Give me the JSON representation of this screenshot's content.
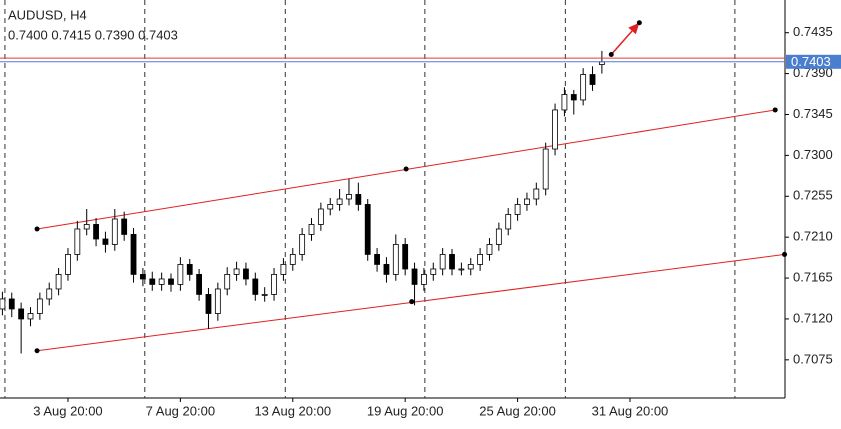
{
  "chart_data": {
    "type": "candlestick",
    "title": "AUDUSD, H4",
    "subtitle": "0.7400 0.7415 0.7390 0.7403",
    "categories": [
      null,
      null,
      null,
      null,
      null,
      null,
      null,
      "3 Aug 20:00",
      null,
      null,
      null,
      null,
      null,
      null,
      null,
      null,
      null,
      null,
      null,
      "7 Aug 20:00",
      null,
      null,
      null,
      null,
      null,
      null,
      null,
      null,
      null,
      null,
      null,
      "13 Aug 20:00",
      null,
      null,
      null,
      null,
      null,
      null,
      null,
      null,
      null,
      null,
      null,
      "19 Aug 20:00",
      null,
      null,
      null,
      null,
      null,
      null,
      null,
      null,
      null,
      null,
      null,
      "25 Aug 20:00",
      null,
      null,
      null,
      null,
      null,
      null,
      null,
      null,
      null,
      null,
      null,
      "31 Aug 20:00",
      null,
      null,
      null,
      null,
      null,
      null,
      null,
      null,
      null,
      null,
      null,
      null,
      null,
      null,
      null,
      null
    ],
    "open": [
      0.7131,
      0.7142,
      0.7131,
      0.712,
      0.7126,
      0.7142,
      0.7153,
      0.7169,
      0.7191,
      0.7219,
      0.7224,
      0.7208,
      0.7202,
      0.723,
      0.7213,
      0.7169,
      0.7164,
      0.7158,
      0.7164,
      0.7158,
      0.718,
      0.7169,
      0.7147,
      0.7126,
      0.7153,
      0.7169,
      0.7175,
      0.7164,
      0.7147,
      0.7147,
      0.7169,
      0.718,
      0.7191,
      0.7213,
      0.7224,
      0.7241,
      0.7246,
      0.7252,
      0.7257,
      0.7246,
      0.7191,
      0.718,
      0.7169,
      0.7202,
      0.7175,
      0.7158,
      0.7169,
      0.7175,
      0.7191,
      0.7175,
      0.7175,
      0.718,
      0.7191,
      0.7202,
      0.7219,
      0.7235,
      0.7246,
      0.7252,
      0.7263,
      0.7307,
      0.735,
      0.7367,
      0.7361,
      0.7389,
      0.74,
      null,
      null,
      null,
      null,
      null,
      null,
      null,
      null,
      null,
      null,
      null,
      null,
      null,
      null,
      null,
      null,
      null,
      null,
      null
    ],
    "high": [
      0.715,
      0.7149,
      0.7138,
      0.7133,
      0.7149,
      0.716,
      0.7176,
      0.7198,
      0.7228,
      0.7241,
      0.7231,
      0.7216,
      0.7241,
      0.7238,
      0.722,
      0.7176,
      0.7172,
      0.7171,
      0.717,
      0.7188,
      0.7186,
      0.7175,
      0.7154,
      0.716,
      0.7177,
      0.7183,
      0.7182,
      0.7171,
      0.7155,
      0.7176,
      0.7187,
      0.7198,
      0.722,
      0.7231,
      0.7248,
      0.7253,
      0.7263,
      0.7274,
      0.727,
      0.7252,
      0.7198,
      0.7188,
      0.7213,
      0.7209,
      0.7182,
      0.7176,
      0.7182,
      0.7198,
      0.7197,
      0.7182,
      0.7187,
      0.7198,
      0.7209,
      0.7226,
      0.7242,
      0.7253,
      0.7259,
      0.727,
      0.7314,
      0.7357,
      0.7375,
      0.7372,
      0.7396,
      0.7398,
      0.7415,
      null,
      null,
      null,
      null,
      null,
      null,
      null,
      null,
      null,
      null,
      null,
      null,
      null,
      null,
      null,
      null,
      null,
      null,
      null
    ],
    "low": [
      0.7124,
      0.7122,
      0.7082,
      0.7112,
      0.7119,
      0.7135,
      0.7146,
      0.7162,
      0.7184,
      0.7212,
      0.72,
      0.7193,
      0.7195,
      0.7206,
      0.716,
      0.7156,
      0.7151,
      0.7151,
      0.715,
      0.7151,
      0.7162,
      0.714,
      0.7109,
      0.7118,
      0.7146,
      0.7162,
      0.7157,
      0.714,
      0.7139,
      0.714,
      0.7162,
      0.7173,
      0.7184,
      0.7206,
      0.7217,
      0.7234,
      0.7239,
      0.7245,
      0.7239,
      0.7184,
      0.7172,
      0.716,
      0.7162,
      0.7168,
      0.7135,
      0.7151,
      0.7162,
      0.7168,
      0.7168,
      0.7168,
      0.7168,
      0.7173,
      0.7184,
      0.7195,
      0.7212,
      0.7228,
      0.7239,
      0.7245,
      0.7256,
      0.73,
      0.7343,
      0.7345,
      0.7355,
      0.7371,
      0.739,
      null,
      null,
      null,
      null,
      null,
      null,
      null,
      null,
      null,
      null,
      null,
      null,
      null,
      null,
      null,
      null,
      null,
      null,
      null
    ],
    "close": [
      0.7142,
      0.7131,
      0.712,
      0.7126,
      0.7142,
      0.7153,
      0.7169,
      0.7191,
      0.7219,
      0.7224,
      0.7208,
      0.7202,
      0.723,
      0.7213,
      0.7169,
      0.7164,
      0.7158,
      0.7164,
      0.7158,
      0.718,
      0.7169,
      0.7147,
      0.7126,
      0.7153,
      0.7169,
      0.7175,
      0.7164,
      0.7147,
      0.7147,
      0.7169,
      0.718,
      0.7191,
      0.7213,
      0.7224,
      0.7241,
      0.7246,
      0.7252,
      0.7257,
      0.7246,
      0.7191,
      0.718,
      0.7169,
      0.7202,
      0.7175,
      0.7158,
      0.7169,
      0.7175,
      0.7191,
      0.7175,
      0.7175,
      0.718,
      0.7191,
      0.7202,
      0.7219,
      0.7235,
      0.7246,
      0.7252,
      0.7263,
      0.7307,
      0.735,
      0.7367,
      0.7361,
      0.7389,
      0.7378,
      0.7403,
      null,
      null,
      null,
      null,
      null,
      null,
      null,
      null,
      null,
      null,
      null,
      null,
      null,
      null,
      null,
      null,
      null,
      null,
      null
    ],
    "up_color": "#ffffff",
    "down_color": "#000000",
    "wick_color": "#000000",
    "ylim": [
      0.7033,
      0.7471
    ],
    "yticks": [
      0.7435,
      {
        "value": 0.739,
        "label": "0.7390"
      },
      0.7345,
      {
        "value": 0.73,
        "label": "0.7300"
      },
      0.7255,
      {
        "value": 0.721,
        "label": "0.7210"
      },
      0.7165,
      {
        "value": 0.712,
        "label": "0.7120"
      },
      0.7075
    ],
    "xgrid": [
      0.27,
      15.2,
      30.2,
      45.1,
      60.1,
      78.2
    ],
    "current_price": 0.7403,
    "current_color": "#4a7fd0",
    "ask_price": 0.7407,
    "ask_color": "#e03a3a",
    "trendlines": [
      {
        "color": "#e02020",
        "points": [
          [
            3.7,
            0.7219
          ],
          [
            43.1,
            0.7285
          ],
          [
            82.5,
            0.735
          ]
        ]
      },
      {
        "color": "#e02020",
        "points": [
          [
            3.7,
            0.7085
          ],
          [
            43.7,
            0.7139
          ],
          [
            83.5,
            0.7191
          ]
        ]
      }
    ],
    "arrow": {
      "color": "#e02020",
      "points": [
        [
          65,
          0.7411
        ],
        [
          68,
          0.7446
        ]
      ]
    }
  }
}
